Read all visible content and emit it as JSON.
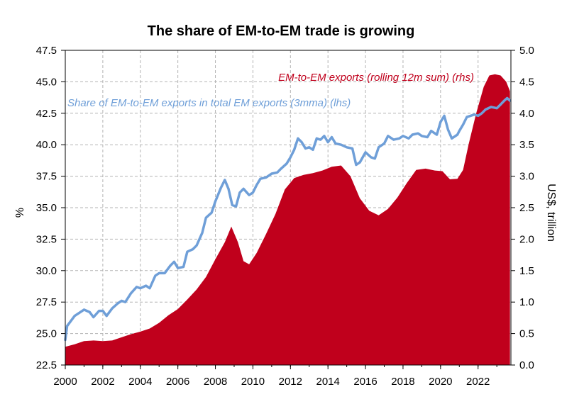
{
  "chart_data": {
    "type": "area+line",
    "title": "The share of EM-to-EM trade is growing",
    "ylabel_left": "%",
    "ylabel_right": "US$, trillion",
    "xlim": [
      2000,
      2023.75
    ],
    "ylim_left": [
      22.5,
      47.5
    ],
    "ylim_right": [
      0.0,
      5.0
    ],
    "x_ticks": [
      "2000",
      "2002",
      "2004",
      "2006",
      "2008",
      "2010",
      "2012",
      "2014",
      "2016",
      "2018",
      "2020",
      "2022"
    ],
    "y_left_ticks": [
      "22.5",
      "25.0",
      "27.5",
      "30.0",
      "32.5",
      "35.0",
      "37.5",
      "40.0",
      "42.5",
      "45.0",
      "47.5"
    ],
    "y_right_ticks": [
      "0.0",
      "0.5",
      "1.0",
      "1.5",
      "2.0",
      "2.5",
      "3.0",
      "3.5",
      "4.0",
      "4.5",
      "5.0"
    ],
    "grid": true,
    "series": [
      {
        "name": "EM-to-EM exports (rolling 12m sum) (rhs)",
        "axis": "right",
        "kind": "area",
        "color": "#c0001c",
        "points": [
          [
            2000,
            0.29
          ],
          [
            2000.5,
            0.33
          ],
          [
            2001,
            0.38
          ],
          [
            2001.5,
            0.39
          ],
          [
            2002,
            0.38
          ],
          [
            2002.5,
            0.39
          ],
          [
            2003,
            0.44
          ],
          [
            2003.5,
            0.49
          ],
          [
            2004,
            0.53
          ],
          [
            2004.5,
            0.58
          ],
          [
            2005,
            0.67
          ],
          [
            2005.5,
            0.79
          ],
          [
            2006,
            0.89
          ],
          [
            2006.5,
            1.04
          ],
          [
            2007,
            1.2
          ],
          [
            2007.5,
            1.4
          ],
          [
            2008,
            1.68
          ],
          [
            2008.5,
            1.95
          ],
          [
            2008.85,
            2.2
          ],
          [
            2009.2,
            1.95
          ],
          [
            2009.5,
            1.65
          ],
          [
            2009.8,
            1.6
          ],
          [
            2010.2,
            1.78
          ],
          [
            2010.7,
            2.08
          ],
          [
            2011.2,
            2.4
          ],
          [
            2011.7,
            2.79
          ],
          [
            2012.2,
            2.97
          ],
          [
            2012.7,
            3.02
          ],
          [
            2013.2,
            3.05
          ],
          [
            2013.7,
            3.09
          ],
          [
            2014.2,
            3.15
          ],
          [
            2014.7,
            3.17
          ],
          [
            2015.2,
            3.0
          ],
          [
            2015.7,
            2.65
          ],
          [
            2016.2,
            2.45
          ],
          [
            2016.7,
            2.38
          ],
          [
            2017.2,
            2.48
          ],
          [
            2017.7,
            2.66
          ],
          [
            2018.2,
            2.89
          ],
          [
            2018.7,
            3.1
          ],
          [
            2019.2,
            3.12
          ],
          [
            2019.7,
            3.09
          ],
          [
            2020.1,
            3.08
          ],
          [
            2020.5,
            2.95
          ],
          [
            2020.9,
            2.96
          ],
          [
            2021.2,
            3.1
          ],
          [
            2021.5,
            3.51
          ],
          [
            2021.9,
            4.0
          ],
          [
            2022.3,
            4.42
          ],
          [
            2022.6,
            4.6
          ],
          [
            2022.9,
            4.62
          ],
          [
            2023.2,
            4.6
          ],
          [
            2023.5,
            4.5
          ],
          [
            2023.7,
            4.35
          ]
        ]
      },
      {
        "name": "Share of EM-to-EM exports in total EM exports (3mma) (lhs)",
        "axis": "left",
        "kind": "line",
        "color": "#6f9fd8",
        "points": [
          [
            2000,
            24.5
          ],
          [
            2000.1,
            25.6
          ],
          [
            2000.3,
            26
          ],
          [
            2000.5,
            26.4
          ],
          [
            2000.8,
            26.7
          ],
          [
            2001,
            26.9
          ],
          [
            2001.3,
            26.7
          ],
          [
            2001.5,
            26.3
          ],
          [
            2001.8,
            26.8
          ],
          [
            2002,
            26.8
          ],
          [
            2002.2,
            26.4
          ],
          [
            2002.5,
            27
          ],
          [
            2002.8,
            27.4
          ],
          [
            2003,
            27.6
          ],
          [
            2003.2,
            27.5
          ],
          [
            2003.5,
            28.2
          ],
          [
            2003.8,
            28.7
          ],
          [
            2004,
            28.6
          ],
          [
            2004.3,
            28.8
          ],
          [
            2004.5,
            28.6
          ],
          [
            2004.8,
            29.6
          ],
          [
            2005,
            29.8
          ],
          [
            2005.3,
            29.8
          ],
          [
            2005.6,
            30.4
          ],
          [
            2005.8,
            30.7
          ],
          [
            2006,
            30.2
          ],
          [
            2006.3,
            30.3
          ],
          [
            2006.5,
            31.5
          ],
          [
            2006.8,
            31.7
          ],
          [
            2007,
            32
          ],
          [
            2007.3,
            33
          ],
          [
            2007.5,
            34.2
          ],
          [
            2007.8,
            34.6
          ],
          [
            2008,
            35.5
          ],
          [
            2008.3,
            36.6
          ],
          [
            2008.5,
            37.2
          ],
          [
            2008.7,
            36.5
          ],
          [
            2008.9,
            35.2
          ],
          [
            2009.1,
            35.1
          ],
          [
            2009.3,
            36.2
          ],
          [
            2009.5,
            36.5
          ],
          [
            2009.8,
            36
          ],
          [
            2010,
            36.2
          ],
          [
            2010.2,
            36.8
          ],
          [
            2010.4,
            37.3
          ],
          [
            2010.7,
            37.4
          ],
          [
            2011,
            37.7
          ],
          [
            2011.3,
            37.8
          ],
          [
            2011.5,
            38.1
          ],
          [
            2011.8,
            38.5
          ],
          [
            2012,
            39
          ],
          [
            2012.2,
            39.6
          ],
          [
            2012.4,
            40.5
          ],
          [
            2012.6,
            40.2
          ],
          [
            2012.8,
            39.7
          ],
          [
            2013,
            39.8
          ],
          [
            2013.2,
            39.6
          ],
          [
            2013.4,
            40.5
          ],
          [
            2013.6,
            40.4
          ],
          [
            2013.8,
            40.7
          ],
          [
            2014,
            40.2
          ],
          [
            2014.2,
            40.6
          ],
          [
            2014.4,
            40.1
          ],
          [
            2014.7,
            40
          ],
          [
            2015,
            39.8
          ],
          [
            2015.3,
            39.7
          ],
          [
            2015.5,
            38.4
          ],
          [
            2015.7,
            38.6
          ],
          [
            2016,
            39.4
          ],
          [
            2016.3,
            39
          ],
          [
            2016.5,
            38.9
          ],
          [
            2016.7,
            39.8
          ],
          [
            2017,
            40.1
          ],
          [
            2017.2,
            40.7
          ],
          [
            2017.5,
            40.4
          ],
          [
            2017.8,
            40.5
          ],
          [
            2018,
            40.7
          ],
          [
            2018.3,
            40.5
          ],
          [
            2018.5,
            40.8
          ],
          [
            2018.8,
            40.9
          ],
          [
            2019,
            40.7
          ],
          [
            2019.3,
            40.6
          ],
          [
            2019.5,
            41.1
          ],
          [
            2019.8,
            40.8
          ],
          [
            2020,
            41.8
          ],
          [
            2020.2,
            42.3
          ],
          [
            2020.4,
            41.2
          ],
          [
            2020.6,
            40.5
          ],
          [
            2020.9,
            40.8
          ],
          [
            2021,
            41.1
          ],
          [
            2021.2,
            41.6
          ],
          [
            2021.4,
            42.2
          ],
          [
            2021.6,
            42.3
          ],
          [
            2021.8,
            42.4
          ],
          [
            2022,
            42.3
          ],
          [
            2022.2,
            42.5
          ],
          [
            2022.4,
            42.8
          ],
          [
            2022.7,
            43
          ],
          [
            2023,
            42.9
          ],
          [
            2023.2,
            43.2
          ],
          [
            2023.4,
            43.5
          ],
          [
            2023.55,
            43.7
          ],
          [
            2023.7,
            43.5
          ]
        ]
      }
    ],
    "annotations": [
      {
        "text": "EM-to-EM exports (rolling 12m sum) (rhs)",
        "color": "#c0001c"
      },
      {
        "text": "Share of EM-to-EM exports in total EM exports (3mma) (lhs)",
        "color": "#6f9fd8"
      }
    ]
  }
}
